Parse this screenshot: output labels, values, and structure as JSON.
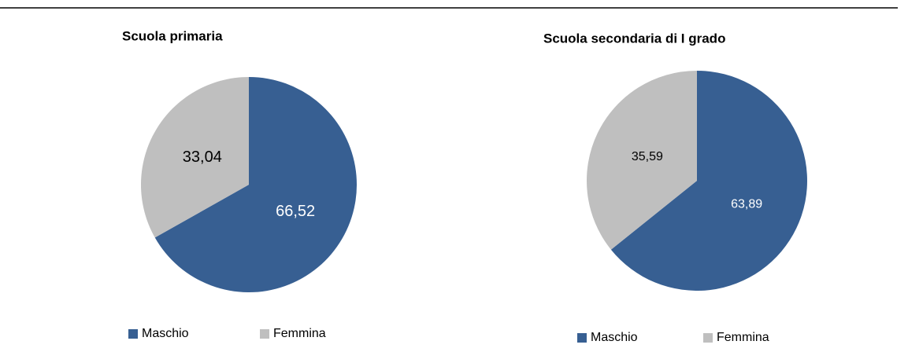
{
  "chart_data": [
    {
      "type": "pie",
      "title": "Scuola primaria",
      "categories": [
        "Maschio",
        "Femmina"
      ],
      "values": [
        66.52,
        33.04
      ],
      "value_labels": [
        "66,52",
        "33,04"
      ],
      "colors": [
        "#375f92",
        "#bfbfbf"
      ]
    },
    {
      "type": "pie",
      "title": "Scuola secondaria di I grado",
      "categories": [
        "Maschio",
        "Femmina"
      ],
      "values": [
        63.89,
        35.59
      ],
      "value_labels": [
        "63,89",
        "35,59"
      ],
      "colors": [
        "#375f92",
        "#bfbfbf"
      ]
    }
  ]
}
